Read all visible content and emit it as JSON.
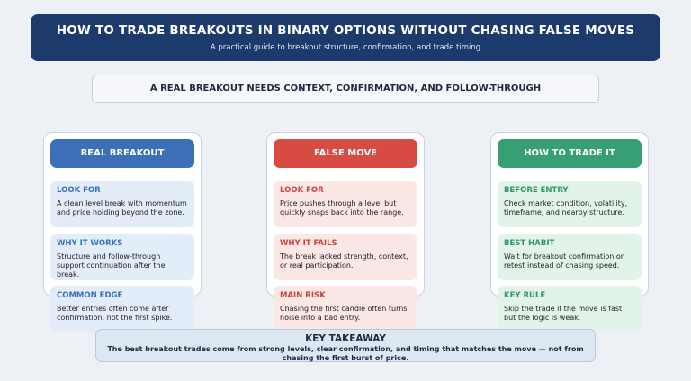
{
  "header": {
    "title": "HOW TO TRADE BREAKOUTS IN BINARY OPTIONS WITHOUT CHASING FALSE MOVES",
    "subtitle": "A practical guide to breakout structure, confirmation, and trade timing"
  },
  "banner": "A REAL BREAKOUT NEEDS CONTEXT, CONFIRMATION, AND FOLLOW-THROUGH",
  "columns": [
    {
      "title": "REAL BREAKOUT",
      "sections": [
        {
          "label": "LOOK FOR",
          "text": "A clean level break with momentum and price holding beyond the zone."
        },
        {
          "label": "WHY IT WORKS",
          "text": "Structure and follow-through support continuation after the break."
        },
        {
          "label": "COMMON EDGE",
          "text": "Better entries often come after confirmation, not the first spike."
        }
      ]
    },
    {
      "title": "FALSE MOVE",
      "sections": [
        {
          "label": "LOOK FOR",
          "text": "Price pushes through a level but quickly snaps back into the range."
        },
        {
          "label": "WHY IT FAILS",
          "text": "The break lacked strength, context, or real participation."
        },
        {
          "label": "MAIN RISK",
          "text": "Chasing the first candle often turns noise into a bad entry."
        }
      ]
    },
    {
      "title": "HOW TO TRADE IT",
      "sections": [
        {
          "label": "BEFORE ENTRY",
          "text": "Check market condition, volatility, timeframe, and nearby structure."
        },
        {
          "label": "BEST HABIT",
          "text": "Wait for breakout confirmation or retest instead of chasing speed."
        },
        {
          "label": "KEY RULE",
          "text": "Skip the trade if the move is fast but the logic is weak."
        }
      ]
    }
  ],
  "takeaway": {
    "title": "KEY TAKEAWAY",
    "text": "The best breakout trades come from strong levels, clear confirmation, and timing that matches the move — not from chasing the first burst of price."
  }
}
